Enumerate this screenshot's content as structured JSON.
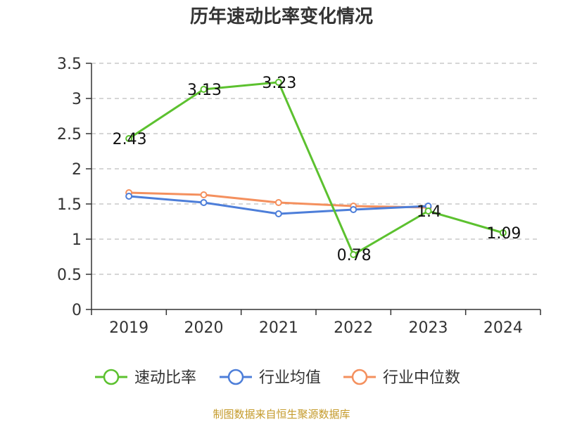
{
  "chart_data": {
    "type": "line",
    "title": "历年速动比率变化情况",
    "categories": [
      "2019",
      "2020",
      "2021",
      "2022",
      "2023",
      "2024"
    ],
    "ylim": [
      0,
      3.5
    ],
    "yticks": [
      "0",
      "0.5",
      "1",
      "1.5",
      "2",
      "2.5",
      "3",
      "3.5"
    ],
    "grid": true,
    "legend_position": "bottom",
    "series": [
      {
        "name": "速动比率",
        "color": "#5cc12f",
        "values": [
          2.43,
          3.13,
          3.23,
          0.78,
          1.4,
          1.09
        ],
        "labels": [
          "2.43",
          "3.13",
          "3.23",
          "0.78",
          "1.4",
          "1.09"
        ]
      },
      {
        "name": "行业均值",
        "color": "#4d7ed9",
        "values": [
          1.61,
          1.52,
          1.36,
          1.42,
          1.47,
          null
        ]
      },
      {
        "name": "行业中位数",
        "color": "#f4905e",
        "values": [
          1.66,
          1.63,
          1.52,
          1.47,
          1.45,
          null
        ]
      }
    ]
  },
  "source": {
    "text": "制图数据来自恒生聚源数据库",
    "color": "#c49a2a"
  }
}
